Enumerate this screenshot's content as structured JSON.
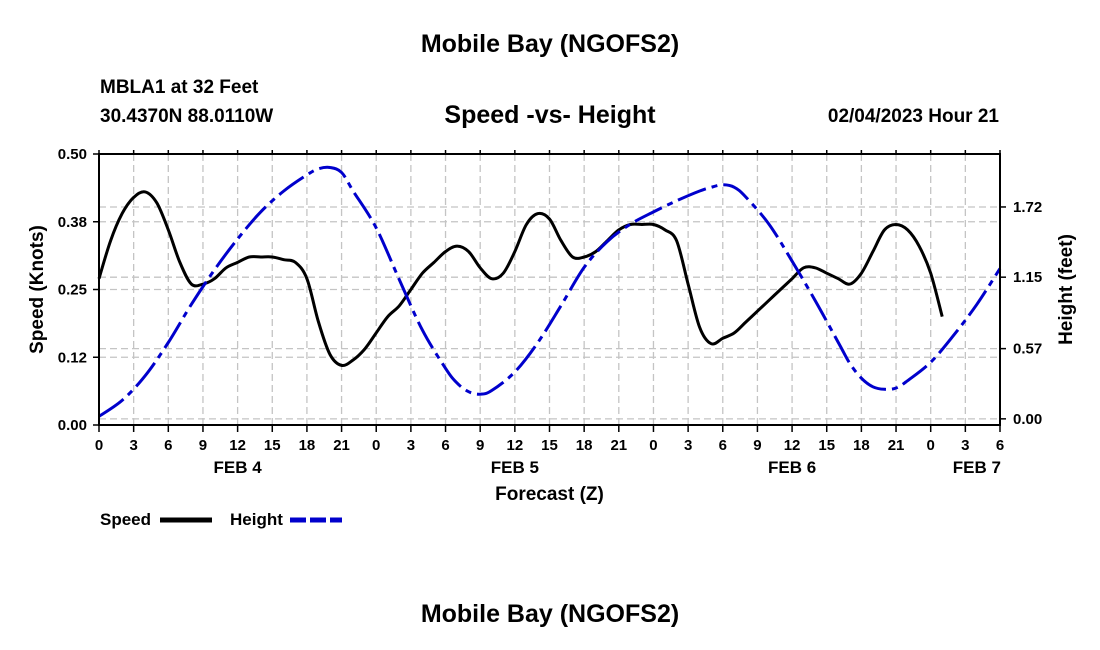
{
  "header": {
    "title": "Mobile Bay (NGOFS2)",
    "station": "MBLA1 at 32 Feet",
    "coords": "30.4370N  88.0110W",
    "subtitle": "Speed -vs- Height",
    "datestamp": "02/04/2023 Hour 21"
  },
  "footer": {
    "title": "Mobile Bay (NGOFS2)"
  },
  "chart_data": {
    "type": "line",
    "xlabel": "Forecast (Z)",
    "ylabel": "Speed (Knots)",
    "ylabel_right": "Height (feet)",
    "x_hours": {
      "min": 0,
      "max": 78,
      "step": 3
    },
    "x_tick_labels": [
      "0",
      "3",
      "6",
      "9",
      "12",
      "15",
      "18",
      "21",
      "0",
      "3",
      "6",
      "9",
      "12",
      "15",
      "18",
      "21",
      "0",
      "3",
      "6",
      "9",
      "12",
      "15",
      "18",
      "21",
      "0",
      "3",
      "6"
    ],
    "day_labels": [
      {
        "hour": 12,
        "label": "FEB 4"
      },
      {
        "hour": 36,
        "label": "FEB 5"
      },
      {
        "hour": 60,
        "label": "FEB 6"
      },
      {
        "hour": 76,
        "label": "FEB 7"
      }
    ],
    "y_left": {
      "min": 0,
      "max": 0.5,
      "ticks": [
        0.0,
        0.125,
        0.25,
        0.375,
        0.5
      ],
      "tick_labels": [
        "0.00",
        "0.12",
        "0.25",
        "0.38",
        "0.50"
      ]
    },
    "y_right": {
      "min": -0.05,
      "max": 2.15,
      "ticks": [
        0.0,
        0.57,
        1.15,
        1.72
      ],
      "tick_labels": [
        "0.00",
        "0.57",
        "1.15",
        "1.72"
      ]
    },
    "grid": true,
    "legend": {
      "placement": "bottom-left",
      "entries": [
        "Speed",
        "Height"
      ]
    },
    "series": [
      {
        "name": "Speed",
        "axis": "left",
        "color": "#000000",
        "dash": "solid",
        "points": [
          [
            0,
            0.27
          ],
          [
            1,
            0.34
          ],
          [
            2,
            0.39
          ],
          [
            3,
            0.42
          ],
          [
            4,
            0.43
          ],
          [
            5,
            0.41
          ],
          [
            6,
            0.36
          ],
          [
            7,
            0.3
          ],
          [
            8,
            0.26
          ],
          [
            9,
            0.26
          ],
          [
            10,
            0.27
          ],
          [
            11,
            0.29
          ],
          [
            12,
            0.3
          ],
          [
            13,
            0.31
          ],
          [
            14,
            0.31
          ],
          [
            15,
            0.31
          ],
          [
            16,
            0.305
          ],
          [
            17,
            0.3
          ],
          [
            18,
            0.27
          ],
          [
            19,
            0.19
          ],
          [
            20,
            0.13
          ],
          [
            21,
            0.11
          ],
          [
            22,
            0.12
          ],
          [
            23,
            0.14
          ],
          [
            24,
            0.17
          ],
          [
            25,
            0.2
          ],
          [
            26,
            0.22
          ],
          [
            27,
            0.25
          ],
          [
            28,
            0.28
          ],
          [
            29,
            0.3
          ],
          [
            30,
            0.32
          ],
          [
            31,
            0.33
          ],
          [
            32,
            0.32
          ],
          [
            33,
            0.29
          ],
          [
            34,
            0.27
          ],
          [
            35,
            0.28
          ],
          [
            36,
            0.32
          ],
          [
            37,
            0.37
          ],
          [
            38,
            0.39
          ],
          [
            39,
            0.38
          ],
          [
            40,
            0.34
          ],
          [
            41,
            0.31
          ],
          [
            42,
            0.31
          ],
          [
            43,
            0.32
          ],
          [
            44,
            0.34
          ],
          [
            45,
            0.36
          ],
          [
            46,
            0.37
          ],
          [
            47,
            0.37
          ],
          [
            48,
            0.37
          ],
          [
            49,
            0.36
          ],
          [
            50,
            0.34
          ],
          [
            51,
            0.26
          ],
          [
            52,
            0.18
          ],
          [
            53,
            0.15
          ],
          [
            54,
            0.16
          ],
          [
            55,
            0.17
          ],
          [
            56,
            0.19
          ],
          [
            57,
            0.21
          ],
          [
            58,
            0.23
          ],
          [
            59,
            0.25
          ],
          [
            60,
            0.27
          ],
          [
            61,
            0.29
          ],
          [
            62,
            0.29
          ],
          [
            63,
            0.28
          ],
          [
            64,
            0.27
          ],
          [
            65,
            0.26
          ],
          [
            66,
            0.28
          ],
          [
            67,
            0.32
          ],
          [
            68,
            0.36
          ],
          [
            69,
            0.37
          ],
          [
            70,
            0.36
          ],
          [
            71,
            0.33
          ],
          [
            72,
            0.28
          ],
          [
            73,
            0.2
          ]
        ]
      },
      {
        "name": "Height",
        "axis": "right",
        "color": "#0000cc",
        "dash": "dashed",
        "points": [
          [
            0,
            0.02
          ],
          [
            2,
            0.15
          ],
          [
            4,
            0.35
          ],
          [
            6,
            0.62
          ],
          [
            8,
            0.93
          ],
          [
            10,
            1.21
          ],
          [
            12,
            1.46
          ],
          [
            14,
            1.68
          ],
          [
            16,
            1.85
          ],
          [
            18,
            1.98
          ],
          [
            19,
            2.03
          ],
          [
            20,
            2.04
          ],
          [
            21,
            2.0
          ],
          [
            22,
            1.85
          ],
          [
            24,
            1.55
          ],
          [
            26,
            1.13
          ],
          [
            28,
            0.72
          ],
          [
            30,
            0.41
          ],
          [
            31,
            0.29
          ],
          [
            32,
            0.22
          ],
          [
            33,
            0.2
          ],
          [
            34,
            0.23
          ],
          [
            36,
            0.38
          ],
          [
            38,
            0.62
          ],
          [
            40,
            0.92
          ],
          [
            42,
            1.23
          ],
          [
            44,
            1.44
          ],
          [
            46,
            1.58
          ],
          [
            48,
            1.68
          ],
          [
            50,
            1.77
          ],
          [
            52,
            1.85
          ],
          [
            53,
            1.88
          ],
          [
            54,
            1.9
          ],
          [
            55,
            1.88
          ],
          [
            56,
            1.8
          ],
          [
            58,
            1.58
          ],
          [
            60,
            1.28
          ],
          [
            62,
            0.96
          ],
          [
            64,
            0.62
          ],
          [
            65,
            0.45
          ],
          [
            66,
            0.33
          ],
          [
            67,
            0.26
          ],
          [
            68,
            0.24
          ],
          [
            69,
            0.25
          ],
          [
            70,
            0.31
          ],
          [
            72,
            0.46
          ],
          [
            74,
            0.68
          ],
          [
            76,
            0.93
          ],
          [
            78,
            1.22
          ]
        ]
      }
    ]
  }
}
